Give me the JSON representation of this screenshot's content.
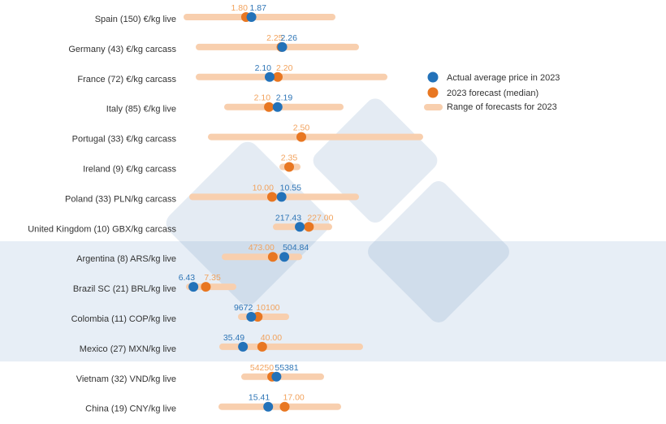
{
  "chart_data": {
    "type": "dot-range",
    "title": "",
    "colors": {
      "actual": "#2372b9",
      "forecast": "#e87722",
      "range": "#f8cfae",
      "actual_label": "#2e75b6",
      "forecast_label": "#f2a25c",
      "band": "#e7eef6"
    },
    "legend": {
      "placement": "right",
      "entries": [
        {
          "key": "actual",
          "label": "Actual average price in 2023"
        },
        {
          "key": "forecast",
          "label": "2023 forecast (median)"
        },
        {
          "key": "range",
          "label": "Range of forecasts for 2023"
        }
      ]
    },
    "highlight_band_rows": [
      "Argentina (8) ARS/kg live",
      "Mexico (27) MXN/kg live"
    ],
    "rows": [
      {
        "label": "Spain (150) €/kg live",
        "actual": 1.87,
        "actual_text": "1.87",
        "forecast": 1.8,
        "forecast_text": "1.80",
        "range": [
          1.03,
          2.92
        ]
      },
      {
        "label": "Germany (43) €/kg carcass",
        "actual": 2.26,
        "actual_text": "2.26",
        "forecast": 2.25,
        "forecast_text": "2.25",
        "range": [
          1.24,
          3.16
        ]
      },
      {
        "label": "France (72) €/kg carcass",
        "actual": 2.1,
        "actual_text": "2.10",
        "forecast": 2.2,
        "forecast_text": "2.20",
        "range": [
          1.23,
          3.51
        ]
      },
      {
        "label": "Italy (85) €/kg live",
        "actual": 2.19,
        "actual_text": "2.19",
        "forecast": 2.1,
        "forecast_text": "2.10",
        "range": [
          1.67,
          2.84
        ]
      },
      {
        "label": "Portugal (33) €/kg carcass",
        "actual": null,
        "actual_text": null,
        "forecast": 2.5,
        "forecast_text": "2.50",
        "range": [
          1.39,
          3.96
        ]
      },
      {
        "label": "Ireland (9) €/kg carcass",
        "actual": null,
        "actual_text": null,
        "forecast": 2.35,
        "forecast_text": "2.35",
        "range": [
          2.27,
          2.45
        ]
      },
      {
        "label": "Poland (33) PLN/kg carcass",
        "actual": 10.55,
        "actual_text": "10.55",
        "forecast": 10.0,
        "forecast_text": "10.00",
        "range": [
          5.4,
          14.84
        ]
      },
      {
        "label": "United Kingdom (10) GBX/kg carcass",
        "actual": 217.43,
        "actual_text": "217.43",
        "forecast": 227.0,
        "forecast_text": "227.00",
        "range": [
          192.8,
          247.9
        ]
      },
      {
        "label": "Argentina (8) ARS/kg live",
        "actual": 504.84,
        "actual_text": "504.84",
        "forecast": 473.0,
        "forecast_text": "473.00",
        "range": [
          341,
          545
        ]
      },
      {
        "label": "Brazil SC (21) BRL/kg live",
        "actual": 6.43,
        "actual_text": "6.43",
        "forecast": 7.35,
        "forecast_text": "7.35",
        "range": [
          6.12,
          9.37
        ]
      },
      {
        "label": "Colombia (11) COP/kg live",
        "actual": 9672,
        "actual_text": "9672",
        "forecast": 10100,
        "forecast_text": "10100",
        "range": [
          9014,
          11955
        ]
      },
      {
        "label": "Mexico (27) MXN/kg live",
        "actual": 35.49,
        "actual_text": "35.49",
        "forecast": 40.0,
        "forecast_text": "40.00",
        "range": [
          30.7,
          62.9
        ]
      },
      {
        "label": "Vietnam (32) VND/kg live",
        "actual": 55381,
        "actual_text": "55381",
        "forecast": 54250,
        "forecast_text": "54250",
        "range": [
          47000,
          67000
        ]
      },
      {
        "label": "China (19) CNY/kg live",
        "actual": 15.41,
        "actual_text": "15.41",
        "forecast": 17.0,
        "forecast_text": "17.00",
        "range": [
          10.93,
          22.13
        ]
      }
    ]
  }
}
